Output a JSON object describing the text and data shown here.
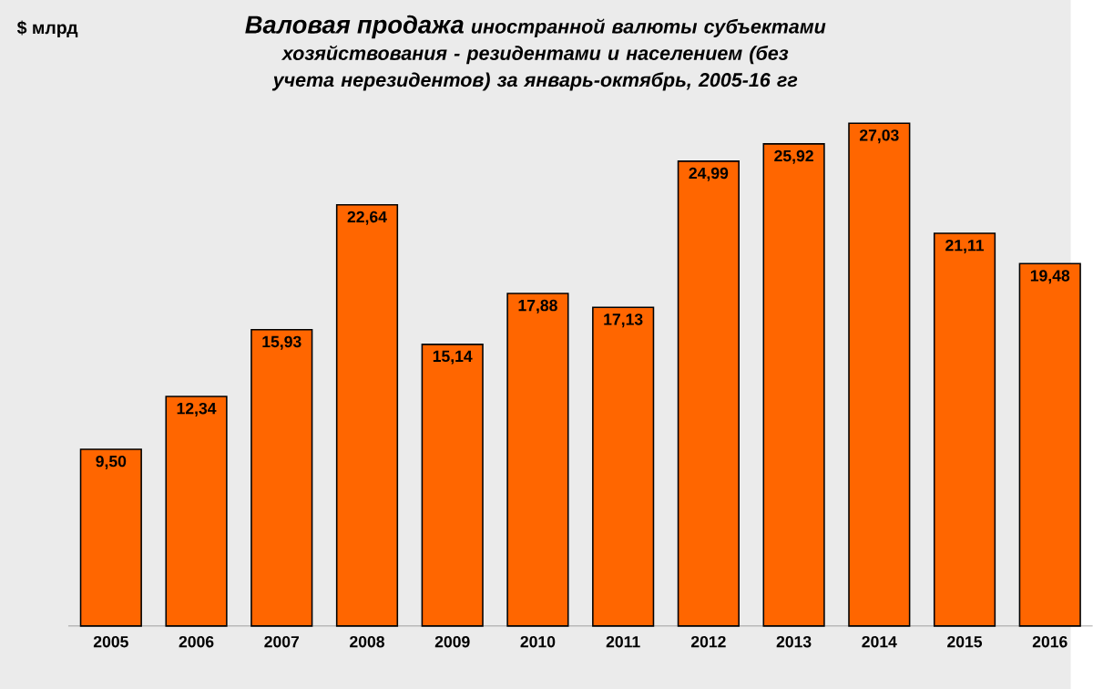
{
  "chart_data": {
    "type": "bar",
    "title": "Валовая продажа",
    "subtitle": "иностранной валюты субъектами хозяйствования - резидентами и населением (без учета нерезидентов) за январь-октябрь, 2005-16 гг",
    "ylabel": "$ млрд",
    "categories": [
      "2005",
      "2006",
      "2007",
      "2008",
      "2009",
      "2010",
      "2011",
      "2012",
      "2013",
      "2014",
      "2015",
      "2016"
    ],
    "values": [
      9.5,
      12.34,
      15.93,
      22.64,
      15.14,
      17.88,
      17.13,
      24.99,
      25.92,
      27.03,
      21.11,
      19.48
    ],
    "value_labels": [
      "9,50",
      "12,34",
      "15,93",
      "22,64",
      "15,14",
      "17,88",
      "17,13",
      "24,99",
      "25,92",
      "27,03",
      "21,11",
      "19,48"
    ],
    "color": "#ff6600"
  }
}
